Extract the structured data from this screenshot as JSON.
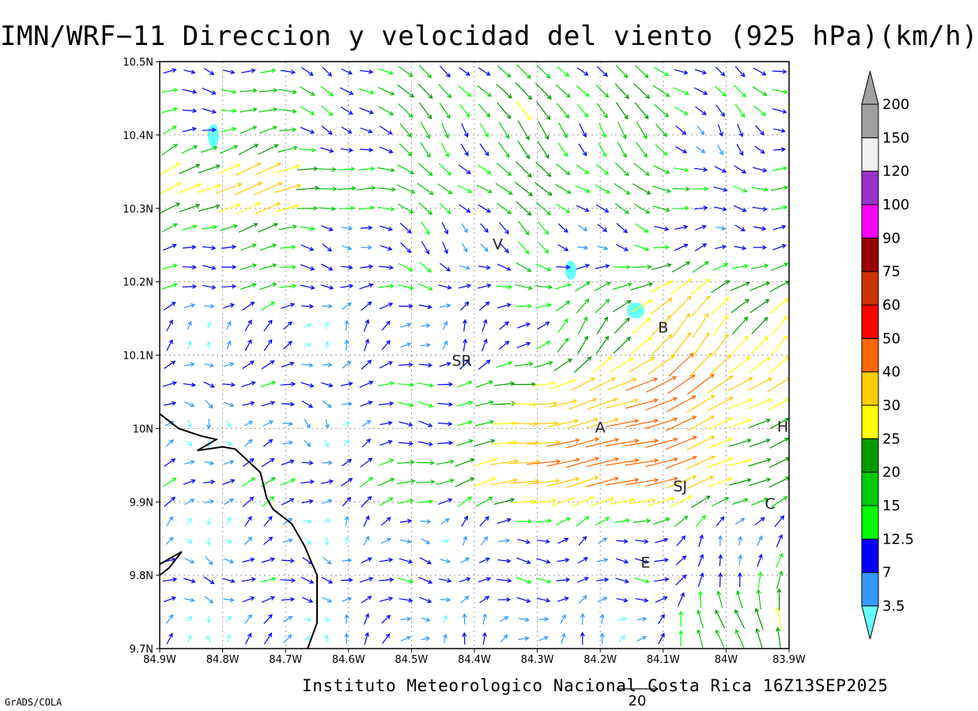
{
  "title": "IMN/WRF−11 Direccion y velocidad del viento (925 hPa)(km/h)",
  "footer": "Instituto Meteorologico Nacional Costa Rica 16Z13SEP2025",
  "credit": "GrADS/COLA",
  "map": {
    "lon_range": [
      -84.9,
      -83.9
    ],
    "lat_range": [
      9.7,
      10.5
    ],
    "x_ticks": [
      "84.9W",
      "84.8W",
      "84.7W",
      "84.6W",
      "84.5W",
      "84.4W",
      "84.3W",
      "84.2W",
      "84.1W",
      "84W",
      "83.9W"
    ],
    "y_ticks": [
      "9.7N",
      "9.8N",
      "9.9N",
      "10N",
      "10.1N",
      "10.2N",
      "10.3N",
      "10.4N",
      "10.5N"
    ],
    "grid": true,
    "cities": [
      {
        "label": "V",
        "lon": -84.363,
        "lat": 10.252
      },
      {
        "label": "SR",
        "lon": -84.42,
        "lat": 10.093
      },
      {
        "label": "B",
        "lon": -84.1,
        "lat": 10.138
      },
      {
        "label": "A",
        "lon": -84.2,
        "lat": 10.002
      },
      {
        "label": "SJ",
        "lon": -84.073,
        "lat": 9.922
      },
      {
        "label": "C",
        "lon": -83.93,
        "lat": 9.898
      },
      {
        "label": "E",
        "lon": -84.128,
        "lat": 9.818
      },
      {
        "label": "H",
        "lon": -83.91,
        "lat": 10.003
      }
    ],
    "reference_vector": "20"
  },
  "colorbar": {
    "labels": [
      "3.5",
      "7",
      "12.5",
      "15",
      "20",
      "25",
      "30",
      "40",
      "50",
      "60",
      "75",
      "90",
      "100",
      "120",
      "150",
      "200"
    ],
    "colors": [
      "#66ffff",
      "#3399ff",
      "#0000ff",
      "#00ff00",
      "#00cc00",
      "#009900",
      "#ffff00",
      "#ffcc00",
      "#ff6600",
      "#ff0000",
      "#cc3300",
      "#990000",
      "#ff00ff",
      "#9933cc",
      "#f2f2f2",
      "#a0a0a0"
    ]
  }
}
